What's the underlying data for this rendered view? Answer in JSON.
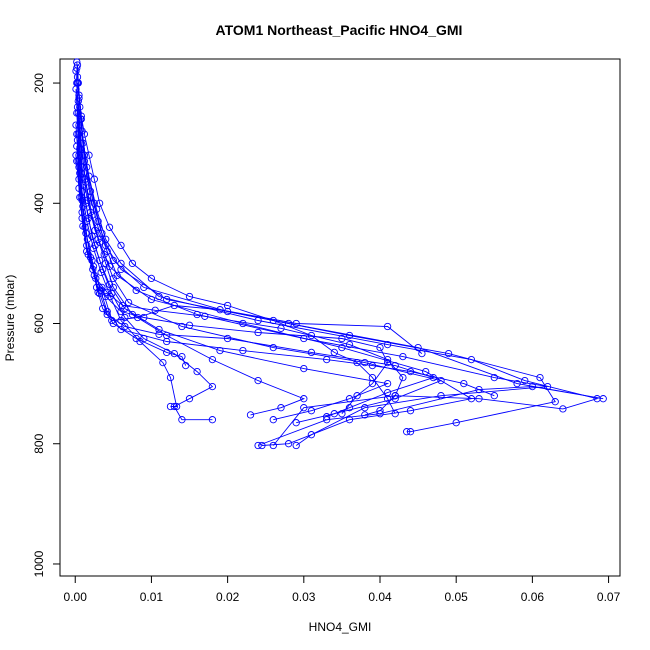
{
  "chart_data": {
    "type": "line",
    "title": "ATOM1 Northeast_Pacific HNO4_GMI",
    "xlabel": "HNO4_GMI",
    "ylabel": "Pressure (mbar)",
    "xlim": [
      -0.002,
      0.0715
    ],
    "ylim": [
      1020,
      160
    ],
    "y_reversed": true,
    "grid": false,
    "marker": "open-circle",
    "color": "#0000ff",
    "xticks": [
      0.0,
      0.01,
      0.02,
      0.03,
      0.04,
      0.05,
      0.06,
      0.07
    ],
    "xtick_labels": [
      "0.00",
      "0.01",
      "0.02",
      "0.03",
      "0.04",
      "0.05",
      "0.06",
      "0.07"
    ],
    "yticks": [
      200,
      400,
      600,
      800,
      1000
    ],
    "ytick_labels": [
      "200",
      "400",
      "600",
      "800",
      "1000"
    ],
    "series": [
      {
        "points": [
          [
            0.0002,
            165
          ],
          [
            0.0004,
            200
          ],
          [
            0.0008,
            260
          ],
          [
            0.0012,
            320
          ],
          [
            0.002,
            380
          ],
          [
            0.003,
            430
          ],
          [
            0.004,
            470
          ],
          [
            0.006,
            510
          ],
          [
            0.012,
            560
          ],
          [
            0.028,
            600
          ],
          [
            0.045,
            640
          ],
          [
            0.058,
            700
          ],
          [
            0.0693,
            725
          ],
          [
            0.06,
            705
          ],
          [
            0.053,
            710
          ],
          [
            0.04,
            750
          ],
          [
            0.033,
            760
          ],
          [
            0.024,
            803
          ]
        ]
      },
      {
        "points": [
          [
            0.0003,
            170
          ],
          [
            0.0005,
            220
          ],
          [
            0.0009,
            280
          ],
          [
            0.0015,
            340
          ],
          [
            0.0025,
            400
          ],
          [
            0.0035,
            450
          ],
          [
            0.005,
            495
          ],
          [
            0.009,
            540
          ],
          [
            0.02,
            580
          ],
          [
            0.036,
            620
          ],
          [
            0.049,
            650
          ],
          [
            0.061,
            690
          ],
          [
            0.063,
            730
          ],
          [
            0.05,
            765
          ],
          [
            0.044,
            780
          ],
          [
            0.0435,
            780
          ]
        ]
      },
      {
        "points": [
          [
            0.0002,
            175
          ],
          [
            0.0006,
            240
          ],
          [
            0.001,
            300
          ],
          [
            0.0018,
            355
          ],
          [
            0.0028,
            410
          ],
          [
            0.004,
            460
          ],
          [
            0.006,
            500
          ],
          [
            0.011,
            555
          ],
          [
            0.024,
            595
          ],
          [
            0.041,
            635
          ],
          [
            0.052,
            660
          ],
          [
            0.059,
            695
          ],
          [
            0.0685,
            725
          ],
          [
            0.064,
            742
          ],
          [
            0.053,
            725
          ],
          [
            0.042,
            720
          ],
          [
            0.03,
            740
          ],
          [
            0.026,
            803
          ]
        ]
      },
      {
        "points": [
          [
            0.0001,
            180
          ],
          [
            0.0004,
            250
          ],
          [
            0.0008,
            310
          ],
          [
            0.0014,
            365
          ],
          [
            0.0022,
            420
          ],
          [
            0.0032,
            465
          ],
          [
            0.0045,
            505
          ],
          [
            0.008,
            545
          ],
          [
            0.016,
            585
          ],
          [
            0.03,
            625
          ],
          [
            0.043,
            655
          ],
          [
            0.055,
            690
          ],
          [
            0.062,
            705
          ],
          [
            0.048,
            720
          ],
          [
            0.038,
            740
          ],
          [
            0.031,
            785
          ],
          [
            0.029,
            803
          ]
        ]
      },
      {
        "points": [
          [
            0.0003,
            190
          ],
          [
            0.0007,
            260
          ],
          [
            0.0012,
            330
          ],
          [
            0.002,
            390
          ],
          [
            0.003,
            440
          ],
          [
            0.0042,
            480
          ],
          [
            0.0055,
            520
          ],
          [
            0.01,
            560
          ],
          [
            0.022,
            600
          ],
          [
            0.035,
            640
          ],
          [
            0.046,
            680
          ],
          [
            0.052,
            725
          ],
          [
            0.044,
            745
          ],
          [
            0.036,
            760
          ],
          [
            0.028,
            800
          ],
          [
            0.0245,
            803
          ]
        ]
      },
      {
        "points": [
          [
            0.0002,
            200
          ],
          [
            0.0005,
            270
          ],
          [
            0.0009,
            340
          ],
          [
            0.0016,
            395
          ],
          [
            0.0026,
            445
          ],
          [
            0.0038,
            485
          ],
          [
            0.005,
            525
          ],
          [
            0.007,
            565
          ],
          [
            0.014,
            605
          ],
          [
            0.026,
            640
          ],
          [
            0.038,
            665
          ],
          [
            0.048,
            695
          ],
          [
            0.042,
            725
          ],
          [
            0.034,
            750
          ],
          [
            0.029,
            765
          ]
        ]
      },
      {
        "points": [
          [
            0.0001,
            210
          ],
          [
            0.0004,
            285
          ],
          [
            0.0008,
            350
          ],
          [
            0.0014,
            400
          ],
          [
            0.0022,
            455
          ],
          [
            0.0032,
            495
          ],
          [
            0.0045,
            535
          ],
          [
            0.0065,
            575
          ],
          [
            0.011,
            610
          ],
          [
            0.019,
            645
          ],
          [
            0.03,
            675
          ],
          [
            0.041,
            700
          ],
          [
            0.036,
            725
          ],
          [
            0.031,
            745
          ],
          [
            0.026,
            760
          ]
        ]
      },
      {
        "points": [
          [
            0.0004,
            230
          ],
          [
            0.0008,
            300
          ],
          [
            0.0013,
            360
          ],
          [
            0.002,
            415
          ],
          [
            0.003,
            460
          ],
          [
            0.004,
            500
          ],
          [
            0.005,
            540
          ],
          [
            0.0075,
            585
          ],
          [
            0.012,
            620
          ],
          [
            0.018,
            660
          ],
          [
            0.024,
            695
          ],
          [
            0.03,
            725
          ],
          [
            0.027,
            740
          ],
          [
            0.023,
            752
          ]
        ]
      },
      {
        "points": [
          [
            0.0003,
            240
          ],
          [
            0.0006,
            310
          ],
          [
            0.001,
            370
          ],
          [
            0.0017,
            425
          ],
          [
            0.0026,
            470
          ],
          [
            0.0036,
            510
          ],
          [
            0.0048,
            550
          ],
          [
            0.0065,
            590
          ],
          [
            0.009,
            625
          ],
          [
            0.013,
            650
          ],
          [
            0.016,
            680
          ],
          [
            0.018,
            705
          ],
          [
            0.015,
            725
          ],
          [
            0.013,
            738
          ],
          [
            0.014,
            760
          ],
          [
            0.018,
            760
          ]
        ]
      },
      {
        "points": [
          [
            0.0002,
            250
          ],
          [
            0.0005,
            320
          ],
          [
            0.0009,
            380
          ],
          [
            0.0015,
            430
          ],
          [
            0.0024,
            475
          ],
          [
            0.0034,
            515
          ],
          [
            0.0046,
            555
          ],
          [
            0.006,
            595
          ],
          [
            0.0085,
            630
          ],
          [
            0.0115,
            665
          ],
          [
            0.0125,
            690
          ],
          [
            0.0133,
            738
          ],
          [
            0.0125,
            738
          ]
        ]
      },
      {
        "points": [
          [
            0.0001,
            270
          ],
          [
            0.0004,
            330
          ],
          [
            0.0008,
            390
          ],
          [
            0.0013,
            440
          ],
          [
            0.002,
            490
          ],
          [
            0.0028,
            540
          ],
          [
            0.0036,
            575
          ],
          [
            0.005,
            600
          ],
          [
            0.008,
            625
          ],
          [
            0.012,
            648
          ],
          [
            0.014,
            655
          ],
          [
            0.0145,
            670
          ]
        ]
      },
      {
        "points": [
          [
            0.0002,
            285
          ],
          [
            0.0005,
            340
          ],
          [
            0.0009,
            395
          ],
          [
            0.0014,
            450
          ],
          [
            0.0022,
            495
          ],
          [
            0.003,
            548
          ],
          [
            0.0035,
            540
          ],
          [
            0.0048,
            595
          ],
          [
            0.0082,
            590
          ],
          [
            0.013,
            570
          ],
          [
            0.019,
            577
          ],
          [
            0.029,
            600
          ],
          [
            0.041,
            605
          ],
          [
            0.0455,
            650
          ]
        ]
      },
      {
        "points": [
          [
            0.0003,
            295
          ],
          [
            0.0006,
            350
          ],
          [
            0.001,
            405
          ],
          [
            0.0016,
            460
          ],
          [
            0.0024,
            505
          ],
          [
            0.0033,
            545
          ],
          [
            0.0042,
            580
          ],
          [
            0.006,
            610
          ],
          [
            0.012,
            630
          ],
          [
            0.022,
            645
          ],
          [
            0.033,
            660
          ],
          [
            0.039,
            670
          ],
          [
            0.044,
            680
          ],
          [
            0.051,
            700
          ],
          [
            0.055,
            720
          ]
        ]
      },
      {
        "points": [
          [
            0.0002,
            305
          ],
          [
            0.0005,
            360
          ],
          [
            0.0009,
            415
          ],
          [
            0.0015,
            470
          ],
          [
            0.0023,
            510
          ],
          [
            0.0032,
            550
          ],
          [
            0.0042,
            585
          ],
          [
            0.0065,
            605
          ],
          [
            0.011,
            618
          ],
          [
            0.02,
            625
          ],
          [
            0.031,
            648
          ],
          [
            0.042,
            670
          ],
          [
            0.047,
            690
          ],
          [
            0.041,
            715
          ],
          [
            0.036,
            740
          ],
          [
            0.033,
            755
          ]
        ]
      },
      {
        "points": [
          [
            0.0001,
            320
          ],
          [
            0.0005,
            375
          ],
          [
            0.0009,
            425
          ],
          [
            0.0015,
            480
          ],
          [
            0.0025,
            520
          ],
          [
            0.004,
            555
          ],
          [
            0.006,
            580
          ],
          [
            0.009,
            590
          ],
          [
            0.015,
            603
          ],
          [
            0.024,
            615
          ],
          [
            0.035,
            625
          ],
          [
            0.04,
            640
          ],
          [
            0.041,
            665
          ],
          [
            0.039,
            700
          ],
          [
            0.037,
            720
          ],
          [
            0.035,
            750
          ]
        ]
      },
      {
        "points": [
          [
            0.0002,
            330
          ],
          [
            0.0006,
            390
          ],
          [
            0.001,
            438
          ],
          [
            0.0017,
            485
          ],
          [
            0.0027,
            525
          ],
          [
            0.0042,
            548
          ],
          [
            0.0062,
            570
          ],
          [
            0.0105,
            578
          ],
          [
            0.017,
            588
          ],
          [
            0.027,
            608
          ],
          [
            0.036,
            635
          ],
          [
            0.041,
            660
          ],
          [
            0.043,
            690
          ],
          [
            0.042,
            720
          ],
          [
            0.04,
            745
          ],
          [
            0.038,
            752
          ]
        ]
      },
      {
        "points": [
          [
            0.0003,
            200
          ],
          [
            0.0005,
            225
          ],
          [
            0.0008,
            255
          ],
          [
            0.0012,
            285
          ],
          [
            0.0018,
            320
          ],
          [
            0.0025,
            360
          ],
          [
            0.0032,
            400
          ],
          [
            0.0045,
            440
          ],
          [
            0.006,
            470
          ],
          [
            0.0075,
            500
          ],
          [
            0.01,
            525
          ],
          [
            0.015,
            555
          ],
          [
            0.02,
            570
          ],
          [
            0.026,
            595
          ],
          [
            0.031,
            620
          ],
          [
            0.034,
            648
          ],
          [
            0.037,
            665
          ],
          [
            0.039,
            690
          ],
          [
            0.041,
            725
          ],
          [
            0.042,
            750
          ]
        ]
      }
    ]
  }
}
